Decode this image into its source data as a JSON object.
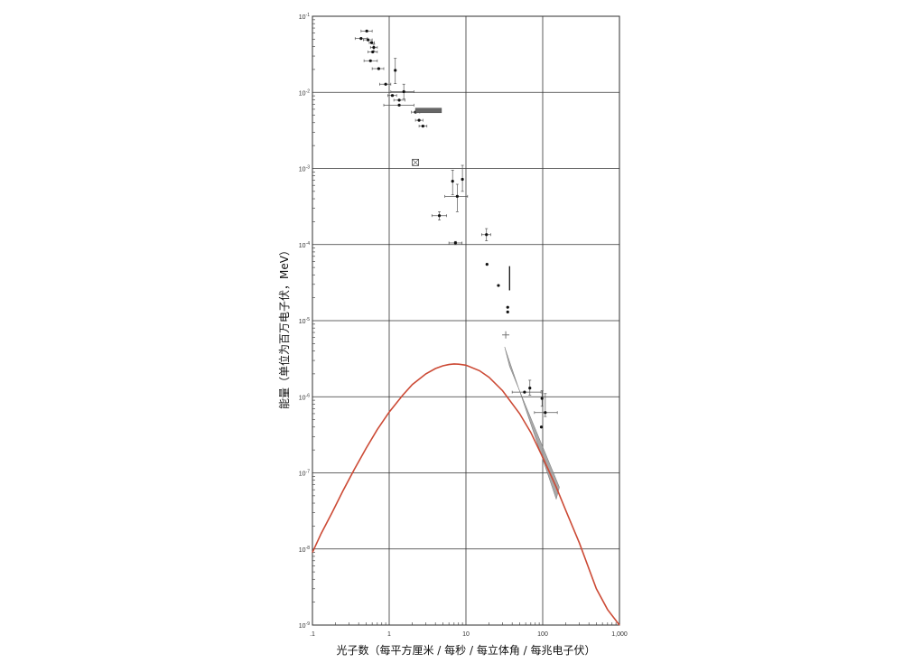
{
  "chart_data": {
    "type": "scatter",
    "title": "",
    "xlabel": "光子数（每平方厘米 / 每秒 / 每立体角 / 每兆电子伏）",
    "ylabel": "能量（单位为百万电子伏，MeV）",
    "x_scale": "log",
    "y_scale": "log",
    "xlim": [
      0.1,
      1000
    ],
    "ylim": [
      1e-09,
      0.1
    ],
    "grid": true,
    "x_ticks": [
      {
        "value": 0.1,
        "label": ".1"
      },
      {
        "value": 1,
        "label": "1"
      },
      {
        "value": 10,
        "label": "10"
      },
      {
        "value": 100,
        "label": "100"
      },
      {
        "value": 1000,
        "label": "1,000"
      }
    ],
    "y_ticks": [
      {
        "value": 0.1,
        "base": "10",
        "exp": "-1"
      },
      {
        "value": 0.01,
        "base": "10",
        "exp": "-2"
      },
      {
        "value": 0.001,
        "base": "10",
        "exp": "-3"
      },
      {
        "value": 0.0001,
        "base": "10",
        "exp": "-4"
      },
      {
        "value": 1e-05,
        "base": "10",
        "exp": "-5"
      },
      {
        "value": 1e-06,
        "base": "10",
        "exp": "-6"
      },
      {
        "value": 1e-07,
        "base": "10",
        "exp": "-7"
      },
      {
        "value": 1e-08,
        "base": "10",
        "exp": "-8"
      },
      {
        "value": 1e-09,
        "base": "10",
        "exp": "-9"
      }
    ],
    "series": [
      {
        "kind": "data_points_with_error_bars",
        "color": "#111111",
        "points": [
          {
            "x": 0.51,
            "y": 0.064,
            "xerr": [
              0.43,
              0.6
            ]
          },
          {
            "x": 0.43,
            "y": 0.051,
            "xerr": [
              0.36,
              0.52
            ]
          },
          {
            "x": 0.53,
            "y": 0.049,
            "xerr": [
              0.46,
              0.6
            ]
          },
          {
            "x": 0.59,
            "y": 0.045,
            "xerr": [
              0.55,
              0.64
            ]
          },
          {
            "x": 0.63,
            "y": 0.039,
            "xerr": [
              0.57,
              0.7
            ],
            "yerr": [
              0.035,
              0.043
            ]
          },
          {
            "x": 0.61,
            "y": 0.034,
            "xerr": [
              0.53,
              0.7
            ]
          },
          {
            "x": 0.57,
            "y": 0.026,
            "xerr": [
              0.47,
              0.7
            ]
          },
          {
            "x": 1.2,
            "y": 0.0195,
            "yerr": [
              0.013,
              0.028
            ]
          },
          {
            "x": 0.73,
            "y": 0.0205,
            "xerr": [
              0.6,
              0.85
            ]
          },
          {
            "x": 0.9,
            "y": 0.0128,
            "xerr": [
              0.75,
              1.05
            ]
          },
          {
            "x": 1.55,
            "y": 0.0102,
            "xerr": [
              1.05,
              2.1
            ],
            "yerr": [
              0.0082,
              0.0128
            ]
          },
          {
            "x": 1.1,
            "y": 0.0091,
            "xerr": [
              0.96,
              1.25
            ]
          },
          {
            "x": 1.35,
            "y": 0.0079,
            "xerr": [
              1.15,
              1.6
            ]
          },
          {
            "x": 1.35,
            "y": 0.0068,
            "xerr": [
              0.85,
              2.1
            ]
          },
          {
            "x": 2.2,
            "y": 0.0055,
            "xerr": [
              1.95,
              2.5
            ]
          },
          {
            "x": 2.45,
            "y": 0.0043,
            "xerr": [
              2.2,
              2.75
            ]
          },
          {
            "x": 2.75,
            "y": 0.0036,
            "xerr": [
              2.45,
              3.1
            ]
          },
          {
            "x": 6.7,
            "y": 0.00068,
            "yerr": [
              0.00045,
              0.00095
            ]
          },
          {
            "x": 9.0,
            "y": 0.00072,
            "yerr": [
              0.0005,
              0.0011
            ]
          },
          {
            "x": 7.7,
            "y": 0.00043,
            "xerr": [
              5.3,
              10.5
            ],
            "yerr": [
              0.00027,
              0.00062
            ]
          },
          {
            "x": 4.5,
            "y": 0.00024,
            "xerr": [
              3.6,
              5.6
            ],
            "yerr": [
              0.00021,
              0.00027
            ]
          },
          {
            "x": 7.3,
            "y": 0.000105,
            "xerr": [
              6.0,
              8.9
            ],
            "yerr": [
              0.0001,
              0.00011
            ]
          },
          {
            "x": 18.5,
            "y": 0.000135,
            "xerr": [
              16.0,
              21.0
            ],
            "yerr": [
              0.000112,
              0.000162
            ]
          },
          {
            "x": 18.8,
            "y": 5.5e-05
          },
          {
            "x": 26.5,
            "y": 2.9e-05
          },
          {
            "x": 35.0,
            "y": 1.5e-05
          },
          {
            "x": 35.0,
            "y": 1.3e-05
          },
          {
            "x": 58.0,
            "y": 1.15e-06,
            "xerr": [
              40.0,
              95.0
            ]
          },
          {
            "x": 68.0,
            "y": 1.3e-06,
            "yerr": [
              1.05e-06,
              1.65e-06
            ]
          },
          {
            "x": 98.0,
            "y": 9.5e-07,
            "yerr": [
              7.5e-07,
              1.2e-06
            ]
          },
          {
            "x": 108.0,
            "y": 6.2e-07,
            "xerr": [
              78.0,
              155.0
            ],
            "yerr": [
              5.5e-07,
              1.1e-06
            ]
          },
          {
            "x": 96.0,
            "y": 4e-07
          }
        ]
      },
      {
        "kind": "vertical_segment",
        "color": "#111111",
        "x": 37.0,
        "y_range": [
          2.5e-05,
          5.2e-05
        ]
      },
      {
        "kind": "upper_limit_cross",
        "color": "#777777",
        "x": 33.0,
        "y": 6.5e-06
      },
      {
        "kind": "boxed_marker",
        "color": "#444444",
        "x": 2.2,
        "y": 0.0012
      },
      {
        "kind": "filled_band",
        "color": "#666666",
        "x_range": [
          2.2,
          4.8
        ],
        "y_range": [
          0.0054,
          0.0062
        ]
      },
      {
        "kind": "filled_band",
        "color": "#999999",
        "polygon": [
          [
            32.0,
            4.5e-06
          ],
          [
            37.0,
            2.5e-06
          ],
          [
            165.0,
            6.5e-08
          ],
          [
            150.0,
            4.5e-08
          ]
        ]
      },
      {
        "kind": "curve",
        "color": "#cc4a35",
        "x": [
          0.1,
          0.13,
          0.18,
          0.25,
          0.35,
          0.5,
          0.7,
          1.0,
          1.5,
          2.0,
          3.0,
          4.0,
          5.0,
          6.0,
          7.0,
          8.0,
          10.0,
          15.0,
          20.0,
          30.0,
          50.0,
          70.0,
          100.0,
          150.0,
          200.0,
          300.0,
          500.0,
          700.0,
          1000.0
        ],
        "y": [
          9e-09,
          1.6e-08,
          3e-08,
          5.8e-08,
          1.1e-07,
          2.1e-07,
          3.7e-07,
          6.3e-07,
          1.05e-06,
          1.45e-06,
          2e-06,
          2.35e-06,
          2.55e-06,
          2.65e-06,
          2.7e-06,
          2.68e-06,
          2.6e-06,
          2.2e-06,
          1.8e-06,
          1.2e-06,
          6e-07,
          3.4e-07,
          1.6e-07,
          6.5e-08,
          3.2e-08,
          1.2e-08,
          3e-09,
          1.6e-09,
          1e-09
        ]
      }
    ]
  }
}
